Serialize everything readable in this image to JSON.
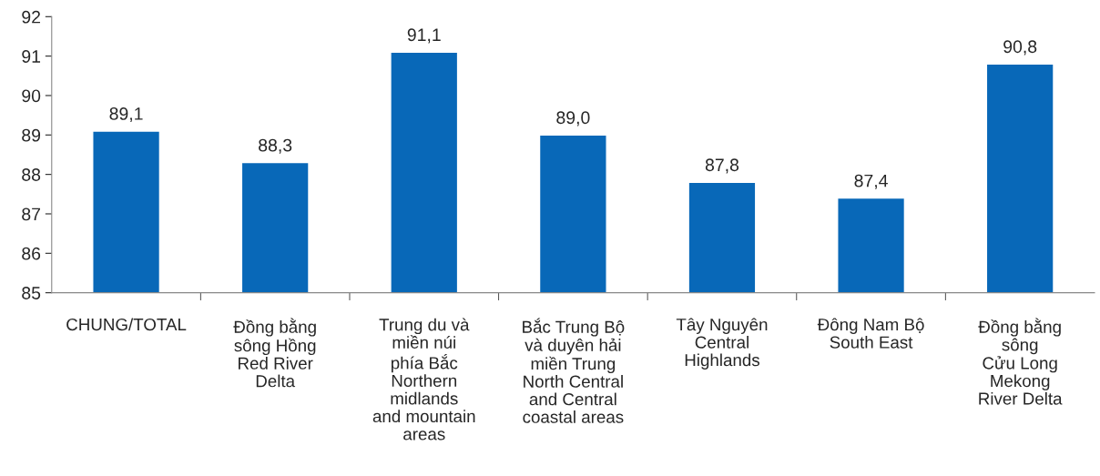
{
  "chart_data": {
    "type": "bar",
    "categories": [
      "CHUNG/TOTAL",
      "Đồng bằng\nsông Hồng\nRed River\nDelta",
      "Trung du và\nmiền núi\nphía Bắc\nNorthern\nmidlands\nand mountain\nareas",
      "Bắc Trung Bộ\nvà duyên hải\nmiền Trung\nNorth Central\nand Central\ncoastal areas",
      "Tây Nguyên\nCentral\nHighlands",
      "Đông Nam Bộ\nSouth East",
      "Đồng bằng\nsông\nCửu Long\nMekong\nRiver Delta"
    ],
    "values": [
      89.1,
      88.3,
      91.1,
      89.0,
      87.8,
      87.4,
      90.8
    ],
    "value_labels": [
      "89,1",
      "88,3",
      "91,1",
      "89,0",
      "87,8",
      "87,4",
      "90,8"
    ],
    "color": "#0868b8",
    "ylim": [
      85,
      92
    ],
    "yticks": [
      85,
      86,
      87,
      88,
      89,
      90,
      91,
      92
    ],
    "grid": false
  }
}
